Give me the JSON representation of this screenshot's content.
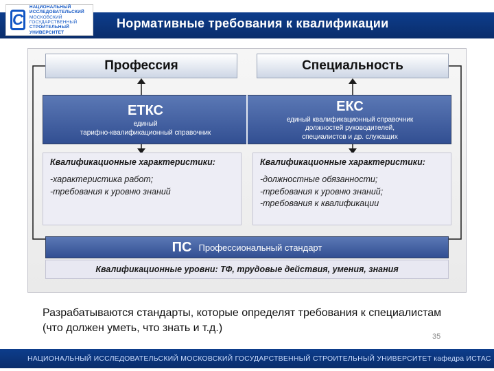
{
  "header": {
    "title": "Нормативные требования к квалификации",
    "logo": {
      "letter": "С",
      "line1": "НАЦИОНАЛЬНЫЙ ИССЛЕДОВАТЕЛЬСКИЙ",
      "line2": "МОСКОВСКИЙ ГОСУДАРСТВЕННЫЙ",
      "line3": "СТРОИТЕЛЬНЫЙ",
      "line4": "УНИВЕРСИТЕТ"
    }
  },
  "colors": {
    "band": "#0d3d8c",
    "band2": "#0a2d6b",
    "blueBar1": "#5b78b5",
    "blueBar2": "#324f92",
    "boxBorder": "#9aa4b8",
    "panel": "#ededf5"
  },
  "chart": {
    "categories": {
      "left": "Профессия",
      "right": "Специальность"
    },
    "defs": {
      "left": {
        "abbr": "ЕТКС",
        "sub": "единый\nтарифно-квалификационный справочник"
      },
      "right": {
        "abbr": "ЕКС",
        "sub": "единый квалификационный справочник\nдолжностей руководителей,\nспециалистов и др. служащих"
      }
    },
    "qc": {
      "title": "Квалификационные характеристики:",
      "left": [
        "-характеристика работ;",
        "-требования к уровню знаний"
      ],
      "right": [
        "-должностные обязанности;",
        "-требования к уровню знаний;",
        "-требования к квалификации"
      ]
    },
    "ps": {
      "abbr": "ПС",
      "sub": "Профессиональный стандарт"
    },
    "levels": "Квалификационные уровни: ТФ, трудовые действия, умения, знания"
  },
  "caption": "Разрабатываются стандарты, которые определят требования к специалистам (что должен уметь, что знать и т.д.)",
  "slide_number": "35",
  "footer": "НАЦИОНАЛЬНЫЙ ИССЛЕДОВАТЕЛЬСКИЙ МОСКОВСКИЙ  ГОСУДАРСТВЕННЫЙ  СТРОИТЕЛЬНЫЙ УНИВЕРСИТЕТ кафедра ИСТАС"
}
